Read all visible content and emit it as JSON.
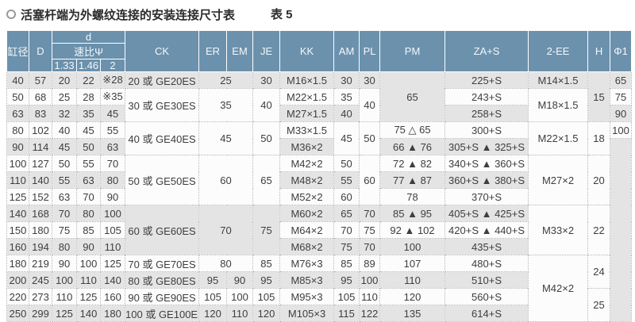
{
  "title": {
    "bullet_icon": "circle-ring",
    "text": "活塞杆端为外螺纹连接的安装连接尺寸表",
    "table_label": "表 5"
  },
  "colors": {
    "header_bg": "#6b91ad",
    "header_text": "#f3f8fb",
    "row_gray": "#e4e4e4",
    "row_white": "#fcfcfc",
    "border": "#b3b3b3",
    "text": "#3e3e3e"
  },
  "table": {
    "header_rows": [
      [
        {
          "t": "缸径",
          "rs": 3
        },
        {
          "t": "D",
          "rs": 3
        },
        {
          "t": "d",
          "cs": 3
        },
        {
          "t": "CK",
          "rs": 3
        },
        {
          "t": "ER",
          "rs": 3
        },
        {
          "t": "EM",
          "rs": 3
        },
        {
          "t": "JE",
          "rs": 3
        },
        {
          "t": "KK",
          "rs": 3
        },
        {
          "t": "AM",
          "rs": 3
        },
        {
          "t": "PL",
          "rs": 3
        },
        {
          "t": "PM",
          "rs": 3
        },
        {
          "t": "ZA+S",
          "rs": 3
        },
        {
          "t": "2-EE",
          "rs": 3
        },
        {
          "t": "H",
          "rs": 3
        },
        {
          "t": "Φ1",
          "rs": 3
        }
      ],
      [
        {
          "t": "速比Ψ",
          "cs": 3
        }
      ],
      [
        {
          "t": "1.33"
        },
        {
          "t": "1.46"
        },
        {
          "t": "2"
        }
      ]
    ],
    "rows": [
      [
        "40",
        "57",
        "20",
        "22",
        "※28",
        "20 或 GE20ES",
        {
          "t": "25",
          "cs": 2
        },
        "30",
        "M16×1.5",
        "30",
        "30",
        {
          "t": "65",
          "rs": 3
        },
        "225+S",
        "M14×1.5",
        {
          "t": "15",
          "rs": 3
        },
        "65"
      ],
      [
        "50",
        "68",
        "25",
        "28",
        "※35",
        {
          "t": "30 或 GE30ES",
          "rs": 2
        },
        {
          "t": "35",
          "cs": 2,
          "rs": 2
        },
        {
          "t": "40",
          "rs": 2
        },
        "M22×1.5",
        "35",
        {
          "t": "40",
          "rs": 2
        },
        "243+S",
        {
          "t": "M18×1.5",
          "rs": 2
        },
        "75"
      ],
      [
        "63",
        "83",
        "32",
        "35",
        "45",
        "M27×1.5",
        "40",
        "258+S",
        "90"
      ],
      [
        "80",
        "102",
        "40",
        "45",
        "55",
        {
          "t": "40 或 GE40ES",
          "rs": 2
        },
        {
          "t": "45",
          "cs": 2,
          "rs": 2
        },
        {
          "t": "50",
          "rs": 2
        },
        "M33×1.5",
        {
          "t": "45",
          "rs": 2
        },
        {
          "t": "50",
          "rs": 2
        },
        "75 △ 65",
        "300+S",
        {
          "t": "M22×1.5",
          "rs": 2
        },
        {
          "t": "18",
          "rs": 2
        },
        "100"
      ],
      [
        "90",
        "114",
        "45",
        "50",
        "63",
        "M36×2",
        "66 ▲ 76",
        "305+S ▲ 325+S",
        {
          "t": "",
          "rs": 11,
          "bg": "g"
        }
      ],
      [
        "100",
        "127",
        "50",
        "55",
        "70",
        {
          "t": "50 或 GE50ES",
          "rs": 3
        },
        {
          "t": "60",
          "cs": 2,
          "rs": 3
        },
        {
          "t": "65",
          "rs": 3
        },
        "M42×2",
        "50",
        {
          "t": "60",
          "rs": 3
        },
        "72 ▲ 82",
        "340+S ▲ 360+S",
        {
          "t": "M27×2",
          "rs": 3
        },
        {
          "t": "20",
          "rs": 3
        }
      ],
      [
        "110",
        "140",
        "55",
        "63",
        "80",
        "M48×2",
        "55",
        "77 ▲ 87",
        "360+S ▲ 380+S"
      ],
      [
        "125",
        "152",
        "63",
        "70",
        "90",
        "M52×2",
        "60",
        "78",
        "370+S"
      ],
      [
        "140",
        "168",
        "70",
        "80",
        "100",
        {
          "t": "60 或 GE60ES",
          "rs": 3
        },
        {
          "t": "70",
          "cs": 2,
          "rs": 3
        },
        {
          "t": "75",
          "rs": 3
        },
        "M60×2",
        "65",
        "70",
        "85 ▲ 95",
        "405+S ▲ 425+S",
        {
          "t": "M33×2",
          "rs": 3,
          "bg": "w"
        },
        {
          "t": "22",
          "rs": 3,
          "bg": "w"
        }
      ],
      [
        "150",
        "180",
        "75",
        "85",
        "105",
        "M64×2",
        "70",
        "75",
        "92 ▲ 102",
        "420+S ▲ 440+S"
      ],
      [
        "160",
        "194",
        "80",
        "90",
        "110",
        "M68×2",
        "75",
        "70",
        "100",
        "435+S"
      ],
      [
        "180",
        "219",
        "90",
        "100",
        "125",
        "70 或 GE70ES",
        {
          "t": "80",
          "cs": 2
        },
        "85",
        "M76×3",
        "85",
        "89",
        "107",
        "480+S",
        {
          "t": "M42×2",
          "rs": 4
        },
        {
          "t": "24",
          "rs": 2
        }
      ],
      [
        "200",
        "245",
        "100",
        "110",
        "140",
        "80 或 GE80ES",
        "95",
        "90",
        "95",
        "M85×3",
        "95",
        "100",
        "110",
        "510+S"
      ],
      [
        "220",
        "273",
        "110",
        "125",
        "160",
        "90 或 GE90ES",
        "105",
        "100",
        "105",
        "M95×3",
        "105",
        "110",
        "120",
        "560+S",
        {
          "t": "25",
          "rs": 2
        }
      ],
      [
        "250",
        "299",
        "125",
        "140",
        "180",
        "100 或 GE100ES",
        "120",
        "110",
        "120",
        "M105×3",
        "115",
        "122",
        "135",
        "614+S"
      ]
    ]
  }
}
